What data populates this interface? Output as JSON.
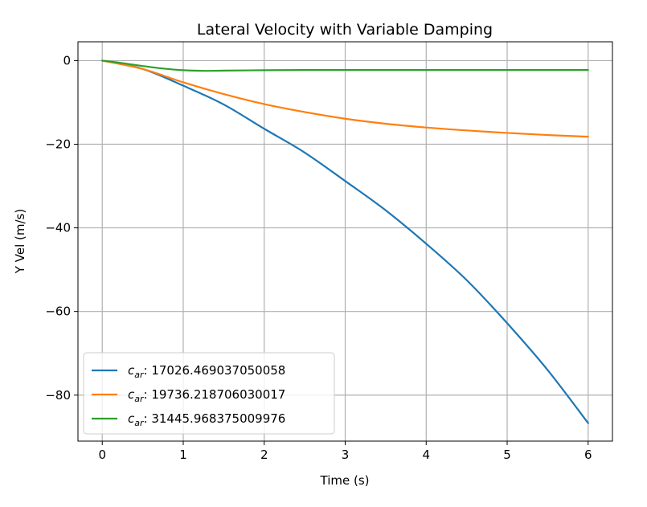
{
  "chart_data": {
    "type": "line",
    "title": "Lateral Velocity with Variable Damping",
    "xlabel": "Time (s)",
    "ylabel": "Y Vel (m/s)",
    "xlim": [
      -0.3,
      6.3
    ],
    "ylim": [
      -91,
      4.5
    ],
    "xticks": [
      0,
      1,
      2,
      3,
      4,
      5,
      6
    ],
    "yticks": [
      0,
      -20,
      -40,
      -60,
      -80
    ],
    "grid": true,
    "legend_position": "lower-left",
    "series": [
      {
        "name_prefix": "c",
        "name_subscript": "ar",
        "name_value": ": 17026.469037050058",
        "color": "#1f77b4",
        "x": [
          0,
          0.5,
          1,
          1.5,
          2,
          2.5,
          3,
          3.5,
          4,
          4.5,
          5,
          5.5,
          6
        ],
        "y": [
          0,
          -2,
          -6,
          -10.5,
          -16.3,
          -22,
          -28.8,
          -35.8,
          -43.8,
          -52.5,
          -62.8,
          -74,
          -86.7
        ]
      },
      {
        "name_prefix": "c",
        "name_subscript": "ar",
        "name_value": ": 19736.218706030017",
        "color": "#ff7f0e",
        "x": [
          0,
          0.5,
          1,
          1.5,
          2,
          2.5,
          3,
          3.5,
          4,
          4.5,
          5,
          5.5,
          6
        ],
        "y": [
          0,
          -2,
          -5.2,
          -8,
          -10.4,
          -12.3,
          -13.9,
          -15.1,
          -16,
          -16.7,
          -17.3,
          -17.8,
          -18.2
        ]
      },
      {
        "name_prefix": "c",
        "name_subscript": "ar",
        "name_value": ": 31445.968375009976",
        "color": "#2ca02c",
        "x": [
          0,
          0.25,
          0.5,
          0.75,
          1,
          1.25,
          1.5,
          2,
          2.5,
          3,
          4,
          5,
          6
        ],
        "y": [
          0,
          -0.6,
          -1.3,
          -1.9,
          -2.3,
          -2.45,
          -2.4,
          -2.3,
          -2.25,
          -2.25,
          -2.25,
          -2.25,
          -2.25
        ]
      }
    ]
  }
}
